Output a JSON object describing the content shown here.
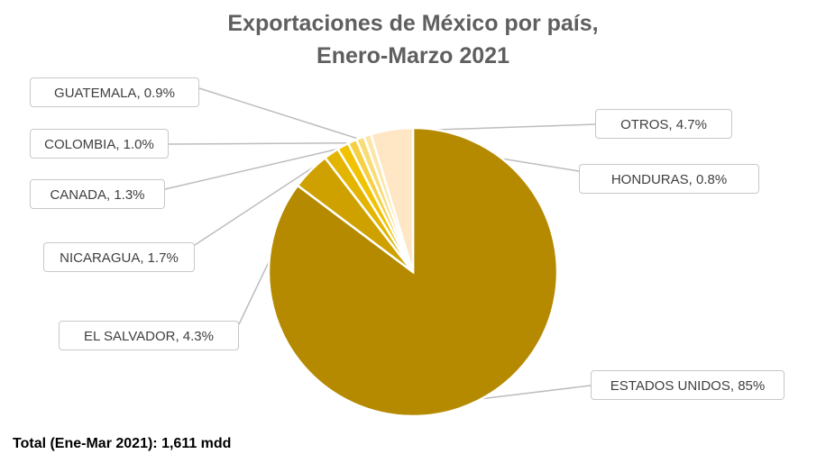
{
  "chart_data": {
    "type": "pie",
    "title_line1": "Exportaciones de México por país,",
    "title_line2": "Enero-Marzo 2021",
    "slices": [
      {
        "name": "ESTADOS UNIDOS",
        "value": 85,
        "pct_label": "85%",
        "color": "#b58a00"
      },
      {
        "name": "EL SALVADOR",
        "value": 4.3,
        "pct_label": "4.3%",
        "color": "#cfa100"
      },
      {
        "name": "NICARAGUA",
        "value": 1.7,
        "pct_label": "1.7%",
        "color": "#e3b400"
      },
      {
        "name": "CANADA",
        "value": 1.3,
        "pct_label": "1.3%",
        "color": "#f0c200"
      },
      {
        "name": "COLOMBIA",
        "value": 1.0,
        "pct_label": "1.0%",
        "color": "#f5d040"
      },
      {
        "name": "GUATEMALA",
        "value": 0.9,
        "pct_label": "0.9%",
        "color": "#f8dc78"
      },
      {
        "name": "HONDURAS",
        "value": 0.8,
        "pct_label": "0.8%",
        "color": "#fbe6a8"
      },
      {
        "name": "OTROS",
        "value": 4.7,
        "pct_label": "4.7%",
        "color": "#ffe6c4"
      }
    ],
    "footer": "Total (Ene-Mar 2021): 1,611 mdd"
  }
}
